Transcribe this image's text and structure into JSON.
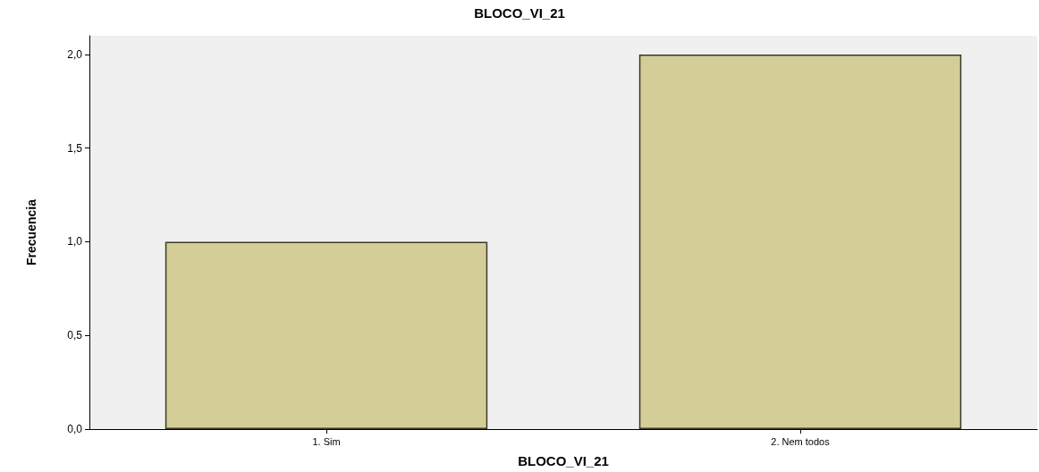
{
  "chart_data": {
    "type": "bar",
    "title": "BLOCO_VI_21",
    "xlabel": "BLOCO_VI_21",
    "ylabel": "Frecuencia",
    "categories": [
      "1. Sim",
      "2. Nem todos"
    ],
    "values": [
      1,
      2
    ],
    "color": "#d3ce97",
    "ylim": [
      0,
      2.1
    ],
    "yticks": [
      {
        "value": 0,
        "label": "0,0"
      },
      {
        "value": 0.5,
        "label": "0,5"
      },
      {
        "value": 1,
        "label": "1,0"
      },
      {
        "value": 1.5,
        "label": "1,5"
      },
      {
        "value": 2,
        "label": "2,0"
      }
    ],
    "grid": false
  }
}
